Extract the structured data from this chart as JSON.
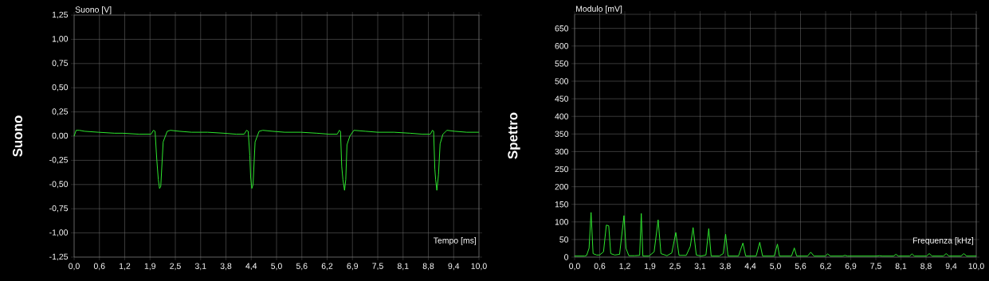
{
  "chart_data": [
    {
      "type": "line",
      "title": "Suono",
      "ylabel": "Suono [V]",
      "xlabel": "Tempo [ms]",
      "grid": true,
      "xlim": [
        0,
        10
      ],
      "ylim": [
        -1.25,
        1.25
      ],
      "xticks": [
        {
          "value": 0,
          "label": "0,0"
        },
        {
          "value": 0.625,
          "label": "0,6"
        },
        {
          "value": 1.25,
          "label": "1,2"
        },
        {
          "value": 1.875,
          "label": "1,9"
        },
        {
          "value": 2.5,
          "label": "2,5"
        },
        {
          "value": 3.125,
          "label": "3,1"
        },
        {
          "value": 3.75,
          "label": "3,8"
        },
        {
          "value": 4.375,
          "label": "4,4"
        },
        {
          "value": 5,
          "label": "5,0"
        },
        {
          "value": 5.625,
          "label": "5,6"
        },
        {
          "value": 6.25,
          "label": "6,2"
        },
        {
          "value": 6.875,
          "label": "6,9"
        },
        {
          "value": 7.5,
          "label": "7,5"
        },
        {
          "value": 8.125,
          "label": "8,1"
        },
        {
          "value": 8.75,
          "label": "8,8"
        },
        {
          "value": 9.375,
          "label": "9,4"
        },
        {
          "value": 10,
          "label": "10,0"
        }
      ],
      "yticks": [
        {
          "value": -1.25,
          "label": "-1,25"
        },
        {
          "value": -1,
          "label": "-1,00"
        },
        {
          "value": -0.75,
          "label": "-0,75"
        },
        {
          "value": -0.5,
          "label": "-0,50"
        },
        {
          "value": -0.25,
          "label": "-0,25"
        },
        {
          "value": 0,
          "label": "0,00"
        },
        {
          "value": 0.25,
          "label": "0,25"
        },
        {
          "value": 0.5,
          "label": "0,50"
        },
        {
          "value": 0.75,
          "label": "0,75"
        },
        {
          "value": 1,
          "label": "1,00"
        },
        {
          "value": 1.25,
          "label": "1,25"
        }
      ],
      "series": [
        {
          "color": "#2ee82e",
          "x": [
            0,
            0.05,
            0.13,
            0.26,
            0.6,
            1.0,
            1.2,
            1.6,
            1.9,
            1.96,
            2.0,
            2.04,
            2.08,
            2.11,
            2.14,
            2.2,
            2.3,
            2.38,
            2.6,
            2.9,
            3.3,
            3.7,
            4.0,
            4.2,
            4.26,
            4.3,
            4.34,
            4.36,
            4.39,
            4.42,
            4.47,
            4.57,
            4.66,
            4.9,
            5.2,
            5.6,
            6.0,
            6.3,
            6.5,
            6.55,
            6.58,
            6.61,
            6.64,
            6.68,
            6.71,
            6.74,
            6.81,
            6.91,
            7.2,
            7.5,
            7.9,
            8.3,
            8.6,
            8.8,
            8.85,
            8.88,
            8.91,
            8.93,
            8.96,
            9.0,
            9.04,
            9.11,
            9.21,
            9.4,
            9.7,
            10.0
          ],
          "values": [
            0,
            0.06,
            0.06,
            0.05,
            0.04,
            0.03,
            0.03,
            0.02,
            0.02,
            0.06,
            0.05,
            -0.23,
            -0.45,
            -0.54,
            -0.52,
            -0.06,
            0.05,
            0.06,
            0.05,
            0.04,
            0.04,
            0.03,
            0.02,
            0.02,
            0.06,
            0.05,
            -0.2,
            -0.42,
            -0.54,
            -0.5,
            -0.06,
            0.05,
            0.06,
            0.05,
            0.04,
            0.04,
            0.03,
            0.02,
            0.02,
            0.06,
            0.05,
            -0.31,
            -0.45,
            -0.56,
            -0.45,
            -0.09,
            0,
            0.06,
            0.05,
            0.04,
            0.04,
            0.03,
            0.02,
            0.02,
            0.06,
            0.05,
            -0.34,
            -0.45,
            -0.56,
            -0.4,
            -0.08,
            0.02,
            0.06,
            0.05,
            0.04,
            0.04
          ]
        }
      ]
    },
    {
      "type": "line",
      "title": "Spettro",
      "ylabel": "Modulo [mV]",
      "xlabel": "Frequenza [kHz]",
      "grid": true,
      "xlim": [
        0,
        10
      ],
      "ylim": [
        0,
        690
      ],
      "xticks": [
        {
          "value": 0,
          "label": "0,0"
        },
        {
          "value": 0.625,
          "label": "0,6"
        },
        {
          "value": 1.25,
          "label": "1,2"
        },
        {
          "value": 1.875,
          "label": "1,9"
        },
        {
          "value": 2.5,
          "label": "2,5"
        },
        {
          "value": 3.125,
          "label": "3,1"
        },
        {
          "value": 3.75,
          "label": "3,8"
        },
        {
          "value": 4.375,
          "label": "4,4"
        },
        {
          "value": 5,
          "label": "5,0"
        },
        {
          "value": 5.625,
          "label": "5,6"
        },
        {
          "value": 6.25,
          "label": "6,2"
        },
        {
          "value": 6.875,
          "label": "6,9"
        },
        {
          "value": 7.5,
          "label": "7,5"
        },
        {
          "value": 8.125,
          "label": "8,1"
        },
        {
          "value": 8.75,
          "label": "8,8"
        },
        {
          "value": 9.375,
          "label": "9,4"
        },
        {
          "value": 10,
          "label": "10,0"
        }
      ],
      "yticks": [
        0,
        50,
        100,
        150,
        200,
        250,
        300,
        350,
        400,
        450,
        500,
        550,
        600,
        650
      ],
      "series": [
        {
          "color": "#2ee82e",
          "x": [
            0,
            0.25,
            0.3,
            0.36,
            0.41,
            0.46,
            0.55,
            0.62,
            0.72,
            0.79,
            0.85,
            0.9,
            1.0,
            1.12,
            1.23,
            1.28,
            1.35,
            1.5,
            1.62,
            1.66,
            1.7,
            1.85,
            1.98,
            2.08,
            2.15,
            2.3,
            2.42,
            2.52,
            2.6,
            2.78,
            2.88,
            2.95,
            3.03,
            3.15,
            3.27,
            3.34,
            3.4,
            3.6,
            3.7,
            3.76,
            3.82,
            4.08,
            4.19,
            4.26,
            4.52,
            4.61,
            4.68,
            4.97,
            5.05,
            5.1,
            5.4,
            5.47,
            5.53,
            5.8,
            5.88,
            5.96,
            6.24,
            6.3,
            6.37,
            6.67,
            6.73,
            6.8,
            7.52,
            7.59,
            7.66,
            7.94,
            8.0,
            8.06,
            8.34,
            8.4,
            8.46,
            8.76,
            8.83,
            8.9,
            9.18,
            9.25,
            9.32,
            9.62,
            9.69,
            9.76,
            10.0
          ],
          "values": [
            3,
            3,
            5,
            25,
            127,
            10,
            6,
            6,
            15,
            91,
            89,
            10,
            6,
            8,
            118,
            25,
            4,
            4,
            5,
            124,
            3,
            3,
            15,
            106,
            10,
            4,
            12,
            70,
            5,
            5,
            30,
            84,
            6,
            3,
            6,
            81,
            3,
            3,
            10,
            65,
            3,
            3,
            40,
            3,
            3,
            42,
            3,
            3,
            37,
            3,
            3,
            26,
            3,
            3,
            14,
            3,
            3,
            9,
            3,
            3,
            5,
            3,
            3,
            4,
            3,
            3,
            8,
            3,
            3,
            9,
            3,
            3,
            10,
            3,
            3,
            10,
            3,
            3,
            10,
            3,
            3
          ]
        }
      ]
    }
  ]
}
